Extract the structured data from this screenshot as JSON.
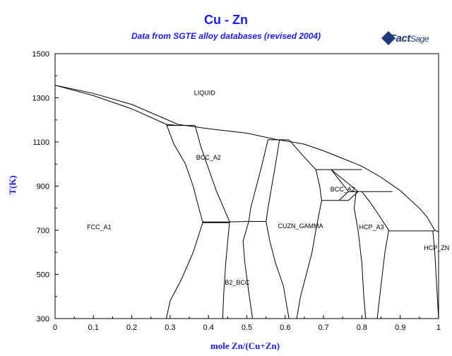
{
  "chart_data": {
    "type": "phase-diagram",
    "title": "Cu - Zn",
    "subtitle": "Data from SGTE alloy databases (revised 2004)",
    "logo_text": {
      "part1": "Fact",
      "part2": "Sage"
    },
    "xlabel": "mole Zn/(Cu+Zn)",
    "ylabel": "T(K)",
    "xlim": [
      0,
      1
    ],
    "ylim": [
      300,
      1500
    ],
    "x_ticks": [
      0,
      0.1,
      0.2,
      0.3,
      0.4,
      0.5,
      0.6,
      0.7,
      0.8,
      0.9,
      1
    ],
    "x_tick_labels": [
      "0",
      "0.1",
      "0.2",
      "0.3",
      "0.4",
      "0.5",
      "0.6",
      "0.7",
      "0.8",
      "0.9",
      "1"
    ],
    "y_ticks": [
      300,
      500,
      700,
      900,
      1100,
      1300,
      1500
    ],
    "y_tick_labels": [
      "300",
      "500",
      "700",
      "900",
      "1100",
      "1300",
      "1500"
    ],
    "line_color": "#000000",
    "title_color": "#1a1aff",
    "phase_labels": [
      {
        "text": "LIQUID",
        "x": 0.39,
        "y": 1322
      },
      {
        "text": "BCC_A2",
        "x": 0.4,
        "y": 1030
      },
      {
        "text": "BCC_A2",
        "x": 0.75,
        "y": 885
      },
      {
        "text": "FCC_A1",
        "x": 0.115,
        "y": 715
      },
      {
        "text": "CUZN_GAMMA",
        "x": 0.64,
        "y": 720
      },
      {
        "text": "HCP_A3",
        "x": 0.825,
        "y": 715
      },
      {
        "text": "HCP_ZN",
        "x": 0.995,
        "y": 620
      },
      {
        "text": "B2_BCC",
        "x": 0.475,
        "y": 463
      }
    ],
    "boundaries": [
      {
        "name": "liquidus",
        "points": [
          [
            0,
            1357
          ],
          [
            0.1,
            1320
          ],
          [
            0.2,
            1270
          ],
          [
            0.32,
            1180
          ],
          [
            0.4,
            1160
          ],
          [
            0.5,
            1140
          ],
          [
            0.58,
            1110
          ],
          [
            0.6,
            1105
          ],
          [
            0.65,
            1090
          ],
          [
            0.7,
            1060
          ],
          [
            0.75,
            1025
          ],
          [
            0.8,
            990
          ],
          [
            0.85,
            940
          ],
          [
            0.9,
            880
          ],
          [
            0.95,
            800
          ],
          [
            0.97,
            760
          ],
          [
            0.99,
            700
          ],
          [
            1,
            693
          ]
        ]
      },
      {
        "name": "solidus-fcc",
        "points": [
          [
            0,
            1357
          ],
          [
            0.1,
            1310
          ],
          [
            0.2,
            1250
          ],
          [
            0.29,
            1180
          ],
          [
            0.32,
            1175
          ]
        ]
      },
      {
        "name": "fcc-solvus",
        "points": [
          [
            0.29,
            1180
          ],
          [
            0.31,
            1090
          ],
          [
            0.34,
            1000
          ],
          [
            0.36,
            900
          ],
          [
            0.375,
            800
          ],
          [
            0.385,
            736
          ],
          [
            0.36,
            600
          ],
          [
            0.33,
            480
          ],
          [
            0.3,
            380
          ],
          [
            0.29,
            300
          ]
        ]
      },
      {
        "name": "bcc-left",
        "points": [
          [
            0.365,
            1175
          ],
          [
            0.38,
            1080
          ],
          [
            0.4,
            980
          ],
          [
            0.42,
            880
          ],
          [
            0.44,
            800
          ],
          [
            0.455,
            738
          ],
          [
            0.45,
            650
          ],
          [
            0.445,
            550
          ],
          [
            0.44,
            420
          ],
          [
            0.437,
            300
          ]
        ]
      },
      {
        "name": "bcc-right",
        "points": [
          [
            0.555,
            1110
          ],
          [
            0.54,
            1000
          ],
          [
            0.525,
            900
          ],
          [
            0.51,
            800
          ],
          [
            0.505,
            740
          ],
          [
            0.49,
            650
          ],
          [
            0.495,
            550
          ],
          [
            0.505,
            420
          ],
          [
            0.515,
            300
          ]
        ]
      },
      {
        "name": "gamma-left",
        "points": [
          [
            0.585,
            1110
          ],
          [
            0.575,
            1000
          ],
          [
            0.565,
            900
          ],
          [
            0.555,
            800
          ],
          [
            0.55,
            740
          ],
          [
            0.56,
            650
          ],
          [
            0.575,
            550
          ],
          [
            0.595,
            450
          ],
          [
            0.605,
            350
          ],
          [
            0.61,
            300
          ]
        ]
      },
      {
        "name": "gamma-right",
        "points": [
          [
            0.61,
            1110
          ],
          [
            0.64,
            1050
          ],
          [
            0.68,
            975
          ],
          [
            0.69,
            900
          ],
          [
            0.695,
            835
          ],
          [
            0.68,
            700
          ],
          [
            0.67,
            600
          ],
          [
            0.655,
            500
          ],
          [
            0.64,
            400
          ],
          [
            0.63,
            300
          ]
        ]
      },
      {
        "name": "peritectic-fcc-bcc",
        "points": [
          [
            0.29,
            1175
          ],
          [
            0.365,
            1175
          ]
        ]
      },
      {
        "name": "peritectic-bcc-gamma",
        "points": [
          [
            0.555,
            1110
          ],
          [
            0.61,
            1110
          ]
        ]
      },
      {
        "name": "eutectoid-b2",
        "points": [
          [
            0.385,
            736
          ],
          [
            0.455,
            736
          ]
        ]
      },
      {
        "name": "b2-order",
        "points": [
          [
            0.455,
            738
          ],
          [
            0.505,
            740
          ],
          [
            0.55,
            740
          ]
        ]
      },
      {
        "name": "delta-top",
        "points": [
          [
            0.68,
            975
          ],
          [
            0.8,
            975
          ]
        ]
      },
      {
        "name": "delta-tie",
        "points": [
          [
            0.72,
            975
          ],
          [
            0.765,
            875
          ]
        ]
      },
      {
        "name": "delta-lower-left",
        "points": [
          [
            0.695,
            835
          ],
          [
            0.765,
            835
          ]
        ]
      },
      {
        "name": "delta-lower",
        "points": [
          [
            0.74,
            835
          ],
          [
            0.765,
            875
          ],
          [
            0.785,
            875
          ]
        ]
      },
      {
        "name": "delta-right",
        "points": [
          [
            0.72,
            975
          ],
          [
            0.79,
            875
          ],
          [
            0.765,
            835
          ]
        ]
      },
      {
        "name": "eps-top",
        "points": [
          [
            0.785,
            875
          ],
          [
            0.88,
            875
          ]
        ]
      },
      {
        "name": "eps-left",
        "points": [
          [
            0.785,
            875
          ],
          [
            0.78,
            800
          ],
          [
            0.79,
            700
          ],
          [
            0.8,
            550
          ],
          [
            0.805,
            400
          ],
          [
            0.81,
            300
          ]
        ]
      },
      {
        "name": "eps-right",
        "points": [
          [
            0.8,
            875
          ],
          [
            0.82,
            830
          ],
          [
            0.84,
            780
          ],
          [
            0.87,
            700
          ],
          [
            0.86,
            600
          ],
          [
            0.85,
            450
          ],
          [
            0.84,
            300
          ]
        ]
      },
      {
        "name": "eps-eutectic",
        "points": [
          [
            0.87,
            697
          ],
          [
            0.99,
            697
          ]
        ]
      },
      {
        "name": "eta-solvus",
        "points": [
          [
            0.985,
            697
          ],
          [
            0.99,
            600
          ],
          [
            0.995,
            450
          ],
          [
            1.0,
            300
          ]
        ]
      }
    ]
  }
}
